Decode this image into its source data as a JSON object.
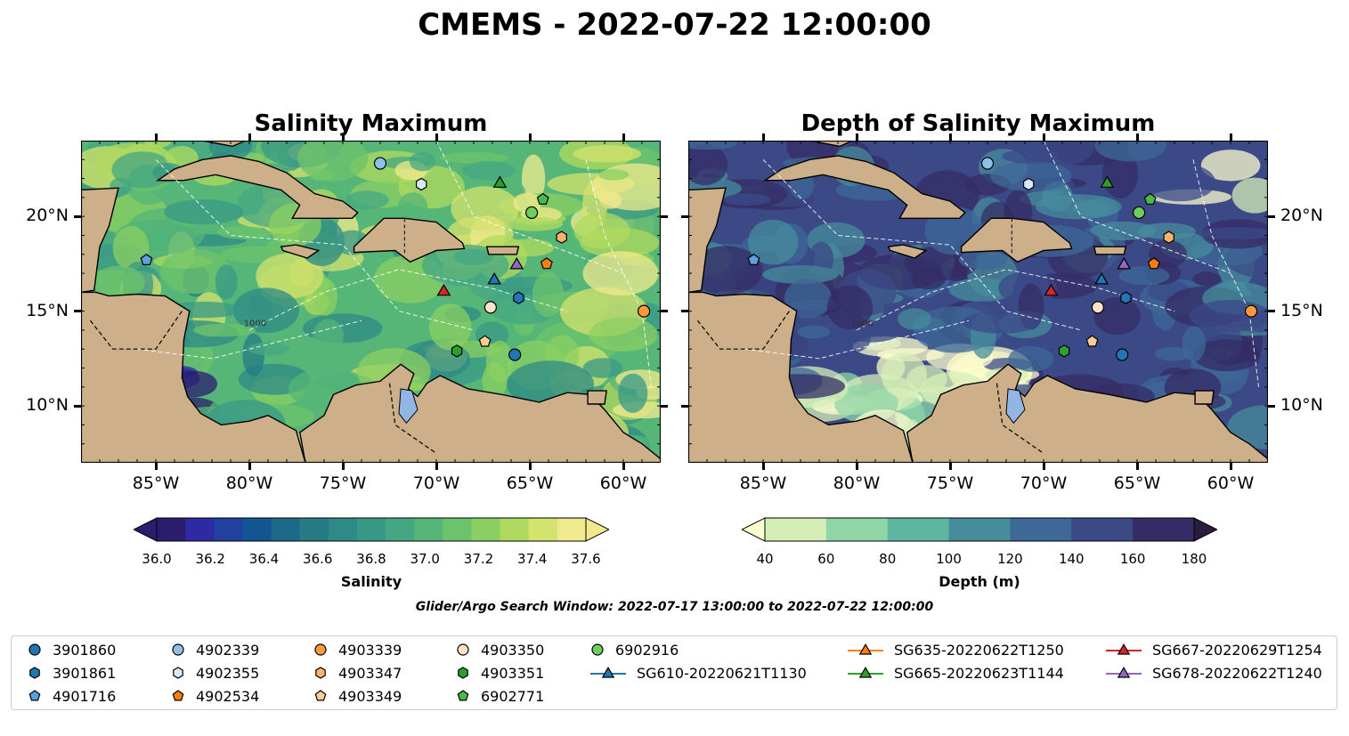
{
  "title": "CMEMS - 2022-07-22 12:00:00",
  "panels": [
    {
      "title": "Salinity Maximum",
      "colorbar_label": "Salinity",
      "colorbar_ticks": [
        "36.0",
        "36.2",
        "36.4",
        "36.6",
        "36.8",
        "37.0",
        "37.2",
        "37.4",
        "37.6"
      ],
      "colors": [
        "#2b1c6e",
        "#2e2aa3",
        "#2140a0",
        "#125592",
        "#1c6a88",
        "#267b86",
        "#2e8a86",
        "#389886",
        "#45a781",
        "#56b677",
        "#6cc36b",
        "#8bcf62",
        "#b0d95f",
        "#d4e26e",
        "#f1e98e"
      ]
    },
    {
      "title": "Depth of Salinity Maximum",
      "colorbar_label": "Depth (m)",
      "colorbar_ticks": [
        "40",
        "60",
        "80",
        "100",
        "120",
        "140",
        "160",
        "180"
      ],
      "colors": [
        "#fdfcce",
        "#d5eeb7",
        "#8fd6a6",
        "#5cb6a0",
        "#478c9c",
        "#3d6897",
        "#3b4a87",
        "#362c65",
        "#2b1b3c"
      ]
    }
  ],
  "axes": {
    "lon_ticks": [
      "85°W",
      "80°W",
      "75°W",
      "70°W",
      "65°W",
      "60°W"
    ],
    "lat_ticks": [
      "20°N",
      "15°N",
      "10°N"
    ],
    "extent": {
      "lon_min": -89,
      "lon_max": -58,
      "lat_min": 7,
      "lat_max": 24
    }
  },
  "contour_labels": [
    "1000"
  ],
  "search_window": "Glider/Argo Search Window: 2022-07-17 13:00:00 to 2022-07-22 12:00:00",
  "legend": [
    {
      "label": "3901860",
      "marker": "circle",
      "color": "#1f77b4"
    },
    {
      "label": "3901861",
      "marker": "hexagon",
      "color": "#1f77b4"
    },
    {
      "label": "4901716",
      "marker": "pentagon",
      "color": "#5aa0dc"
    },
    {
      "label": "4902339",
      "marker": "circle",
      "color": "#8fc1e8"
    },
    {
      "label": "4902355",
      "marker": "hexagon",
      "color": "#d8eaf8"
    },
    {
      "label": "4902534",
      "marker": "pentagon",
      "color": "#ff7f0e"
    },
    {
      "label": "4903339",
      "marker": "circle",
      "color": "#ff9a3c"
    },
    {
      "label": "4903347",
      "marker": "hexagon",
      "color": "#ffb26b"
    },
    {
      "label": "4903349",
      "marker": "pentagon",
      "color": "#ffcc99"
    },
    {
      "label": "4903350",
      "marker": "circle",
      "color": "#ffe3c8"
    },
    {
      "label": "4903351",
      "marker": "hexagon",
      "color": "#2ca02c"
    },
    {
      "label": "6902771",
      "marker": "pentagon",
      "color": "#4cb84c"
    },
    {
      "label": "6902916",
      "marker": "circle",
      "color": "#6cce5c"
    },
    {
      "label": "SG610-20220621T1130",
      "marker": "triangle",
      "color": "#1f77b4"
    },
    {
      "label": "SG635-20220622T1250",
      "marker": "triangle",
      "color": "#ff7f0e"
    },
    {
      "label": "SG665-20220623T1144",
      "marker": "triangle",
      "color": "#2ca02c"
    },
    {
      "label": "SG667-20220629T1254",
      "marker": "triangle",
      "color": "#d62728"
    },
    {
      "label": "SG678-20220622T1240",
      "marker": "triangle",
      "color": "#9467bd"
    }
  ],
  "observations": [
    {
      "id": "3901860",
      "lon": -65.8,
      "lat": 12.7
    },
    {
      "id": "3901861",
      "lon": -65.6,
      "lat": 15.7
    },
    {
      "id": "4901716",
      "lon": -85.5,
      "lat": 17.7
    },
    {
      "id": "4902339",
      "lon": -73.0,
      "lat": 22.8
    },
    {
      "id": "4902355",
      "lon": -70.8,
      "lat": 21.7
    },
    {
      "id": "4902534",
      "lon": -64.1,
      "lat": 17.5
    },
    {
      "id": "4903339",
      "lon": -58.9,
      "lat": 15.0
    },
    {
      "id": "4903347",
      "lon": -63.3,
      "lat": 18.9
    },
    {
      "id": "4903349",
      "lon": -67.4,
      "lat": 13.4
    },
    {
      "id": "4903350",
      "lon": -67.1,
      "lat": 15.2
    },
    {
      "id": "4903351",
      "lon": -68.9,
      "lat": 12.9
    },
    {
      "id": "6902771",
      "lon": -64.3,
      "lat": 20.9
    },
    {
      "id": "6902916",
      "lon": -64.9,
      "lat": 20.2
    },
    {
      "id": "SG610-20220621T1130",
      "lon": -66.9,
      "lat": 16.7
    },
    {
      "id": "SG665-20220623T1144",
      "lon": -66.6,
      "lat": 21.8
    },
    {
      "id": "SG667-20220629T1254",
      "lon": -69.6,
      "lat": 16.1
    },
    {
      "id": "SG678-20220622T1240",
      "lon": -65.7,
      "lat": 17.5
    }
  ]
}
